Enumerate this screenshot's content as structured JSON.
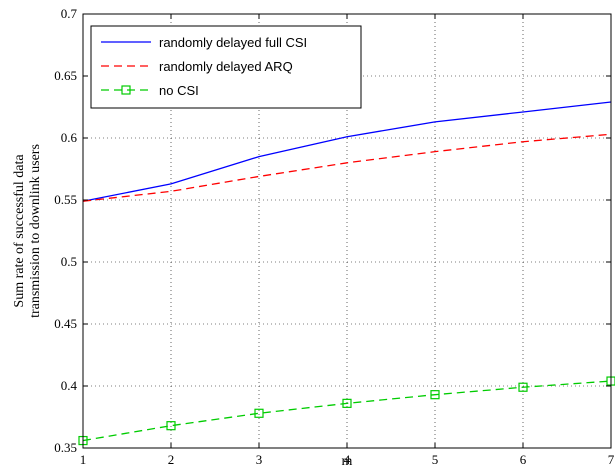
{
  "chart_data": {
    "type": "line",
    "xlabel": "m",
    "ylabel": [
      "Sum rate of successful data",
      "transmission to downlink users"
    ],
    "xlim": [
      1,
      7
    ],
    "ylim": [
      0.35,
      0.7
    ],
    "xticks": [
      "1",
      "2",
      "3",
      "4",
      "5",
      "6",
      "7"
    ],
    "yticks": [
      "0.35",
      "0.4",
      "0.45",
      "0.5",
      "0.55",
      "0.6",
      "0.65",
      "0.7"
    ],
    "grid": true,
    "legend_position": "top-left",
    "x": [
      1,
      2,
      3,
      4,
      5,
      6,
      7
    ],
    "series": [
      {
        "name": "randomly delayed full CSI",
        "values": [
          0.549,
          0.563,
          0.585,
          0.601,
          0.613,
          0.621,
          0.629
        ],
        "color": "#0000ff",
        "style": "solid",
        "marker": "none"
      },
      {
        "name": "randomly delayed ARQ",
        "values": [
          0.549,
          0.557,
          0.569,
          0.58,
          0.589,
          0.597,
          0.603
        ],
        "color": "#ff0000",
        "style": "dashed",
        "marker": "none"
      },
      {
        "name": "no CSI",
        "values": [
          0.356,
          0.368,
          0.378,
          0.386,
          0.393,
          0.399,
          0.404
        ],
        "color": "#00cc00",
        "style": "dashed",
        "marker": "square"
      }
    ]
  }
}
